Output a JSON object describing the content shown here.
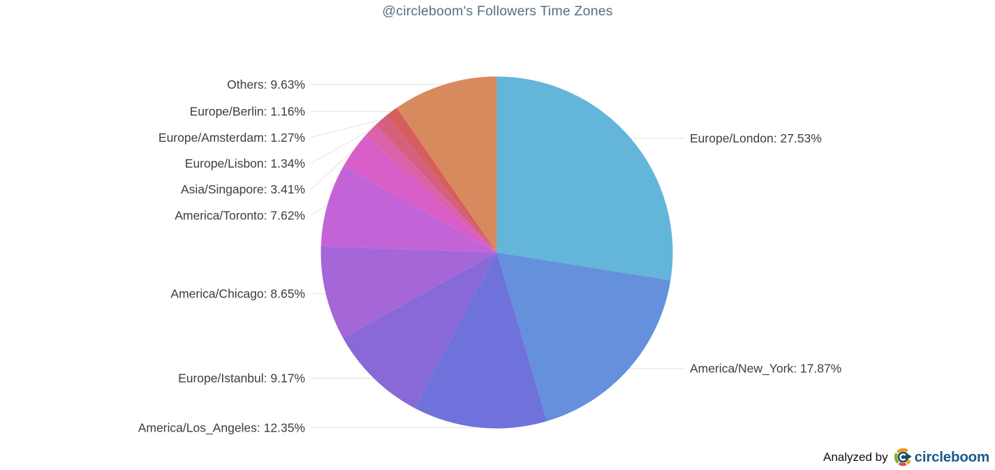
{
  "header": {
    "title": "@circleboom's Followers Time Zones",
    "title_color": "#566f7d"
  },
  "chart_data": {
    "type": "pie",
    "title": "@circleboom's Followers Time Zones",
    "unit": "%",
    "start_angle_deg": 0,
    "direction": "clockwise",
    "legend_position": "callout-labels",
    "label_format": "{label}: {value}%",
    "labels": [
      "Europe/London",
      "America/New_York",
      "America/Los_Angeles",
      "Europe/Istanbul",
      "America/Chicago",
      "America/Toronto",
      "Asia/Singapore",
      "Europe/Lisbon",
      "Europe/Amsterdam",
      "Europe/Berlin",
      "Others"
    ],
    "values": [
      27.53,
      17.87,
      12.35,
      9.17,
      8.65,
      7.62,
      3.41,
      1.34,
      1.27,
      1.16,
      9.63
    ],
    "colors": [
      "#64b5da",
      "#6590db",
      "#6f72da",
      "#8968d7",
      "#a566d8",
      "#c263d8",
      "#d95fc8",
      "#da62a8",
      "#d55f7d",
      "#d65e5e",
      "#d88a5f"
    ],
    "label_color": "#3d3d3d",
    "leader_line_color": "#e2e2e2"
  },
  "footer": {
    "analyzed_by": "Analyzed by",
    "brand": "circleboom",
    "brand_color": "#1a5a8c",
    "logo_colors": {
      "circle": "#1f4e63",
      "orange": "#f3941e",
      "gold": "#f0a51f",
      "red": "#e04f3f",
      "green": "#79b829",
      "swirl": "#ffffff"
    }
  }
}
